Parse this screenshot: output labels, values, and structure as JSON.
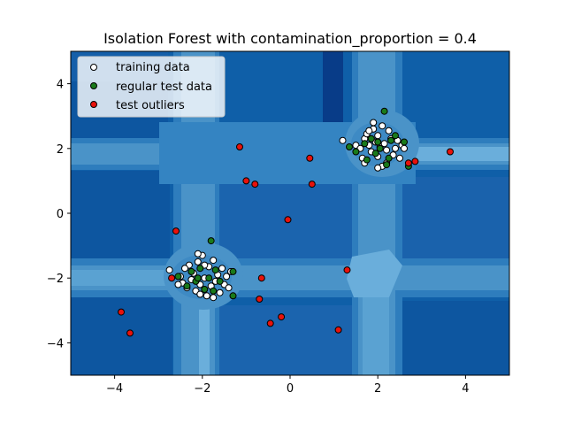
{
  "chart_data": {
    "type": "scatter",
    "title": "Isolation Forest with contamination_proportion = 0.4",
    "xlabel": "",
    "ylabel": "",
    "xlim": [
      -5,
      5
    ],
    "ylim": [
      -5,
      5
    ],
    "x_ticks": [
      -4,
      -2,
      0,
      2,
      4
    ],
    "y_ticks": [
      -4,
      -2,
      0,
      2,
      4
    ],
    "x_tick_labels": [
      "−4",
      "−2",
      "0",
      "2",
      "4"
    ],
    "y_tick_labels": [
      "−4",
      "−2",
      "0",
      "2",
      "4"
    ],
    "legend_position": "top-left",
    "grid": false,
    "background": "decision-function contour (blues)",
    "legend": [
      {
        "label": "training data",
        "color": "#ffffff"
      },
      {
        "label": "regular test data",
        "color": "#1a7a1a"
      },
      {
        "label": "test outliers",
        "color": "#e8120c"
      }
    ],
    "series": [
      {
        "name": "training data",
        "color": "#ffffff",
        "points": [
          [
            1.2,
            2.25
          ],
          [
            1.5,
            2.1
          ],
          [
            1.6,
            2.0
          ],
          [
            1.7,
            2.3
          ],
          [
            1.75,
            2.45
          ],
          [
            1.8,
            2.1
          ],
          [
            1.85,
            1.9
          ],
          [
            1.9,
            2.6
          ],
          [
            1.9,
            2.8
          ],
          [
            1.95,
            2.2
          ],
          [
            2.0,
            2.4
          ],
          [
            2.0,
            1.75
          ],
          [
            2.05,
            2.05
          ],
          [
            2.1,
            2.7
          ],
          [
            2.1,
            1.45
          ],
          [
            2.15,
            2.15
          ],
          [
            2.2,
            1.95
          ],
          [
            2.25,
            2.55
          ],
          [
            2.3,
            2.3
          ],
          [
            2.35,
            1.8
          ],
          [
            2.4,
            2.0
          ],
          [
            2.45,
            2.25
          ],
          [
            2.5,
            1.7
          ],
          [
            2.55,
            2.1
          ],
          [
            1.65,
            1.7
          ],
          [
            1.7,
            1.55
          ],
          [
            2.0,
            1.4
          ],
          [
            2.6,
            2.0
          ],
          [
            1.8,
            2.55
          ],
          [
            2.2,
            1.55
          ],
          [
            -2.75,
            -1.75
          ],
          [
            -2.5,
            -1.95
          ],
          [
            -2.45,
            -2.15
          ],
          [
            -2.35,
            -2.3
          ],
          [
            -2.3,
            -1.6
          ],
          [
            -2.25,
            -2.05
          ],
          [
            -2.2,
            -1.85
          ],
          [
            -2.15,
            -2.4
          ],
          [
            -2.1,
            -1.5
          ],
          [
            -2.05,
            -2.2
          ],
          [
            -2.0,
            -1.3
          ],
          [
            -1.95,
            -2.0
          ],
          [
            -1.9,
            -2.55
          ],
          [
            -1.85,
            -1.65
          ],
          [
            -1.8,
            -2.25
          ],
          [
            -1.75,
            -1.45
          ],
          [
            -1.7,
            -2.1
          ],
          [
            -1.65,
            -1.9
          ],
          [
            -1.6,
            -2.45
          ],
          [
            -1.55,
            -1.7
          ],
          [
            -1.5,
            -2.2
          ],
          [
            -1.45,
            -1.95
          ],
          [
            -1.4,
            -2.3
          ],
          [
            -1.35,
            -1.8
          ],
          [
            -2.1,
            -1.25
          ],
          [
            -2.4,
            -1.7
          ],
          [
            -2.55,
            -2.2
          ],
          [
            -1.75,
            -2.6
          ],
          [
            -1.95,
            -1.6
          ],
          [
            -2.05,
            -2.5
          ]
        ]
      },
      {
        "name": "regular test data",
        "color": "#1a7a1a",
        "points": [
          [
            2.15,
            3.15
          ],
          [
            1.35,
            2.05
          ],
          [
            1.5,
            1.9
          ],
          [
            1.7,
            2.15
          ],
          [
            1.85,
            2.3
          ],
          [
            1.95,
            1.85
          ],
          [
            2.05,
            2.0
          ],
          [
            2.25,
            1.7
          ],
          [
            2.3,
            2.25
          ],
          [
            2.4,
            2.4
          ],
          [
            2.6,
            2.2
          ],
          [
            2.7,
            1.45
          ],
          [
            2.2,
            1.5
          ],
          [
            1.75,
            1.65
          ],
          [
            2.0,
            2.2
          ],
          [
            -1.8,
            -0.85
          ],
          [
            -2.55,
            -1.95
          ],
          [
            -2.35,
            -2.25
          ],
          [
            -2.25,
            -1.8
          ],
          [
            -2.15,
            -2.1
          ],
          [
            -2.05,
            -1.7
          ],
          [
            -1.95,
            -2.35
          ],
          [
            -1.85,
            -2.0
          ],
          [
            -1.7,
            -1.75
          ],
          [
            -1.6,
            -2.1
          ],
          [
            -1.3,
            -2.55
          ],
          [
            -1.3,
            -1.8
          ],
          [
            -2.1,
            -2.0
          ],
          [
            -1.75,
            -2.4
          ]
        ]
      },
      {
        "name": "test outliers",
        "color": "#e8120c",
        "points": [
          [
            -1.15,
            2.05
          ],
          [
            -1.0,
            1.0
          ],
          [
            -0.8,
            0.9
          ],
          [
            0.45,
            1.7
          ],
          [
            0.5,
            0.9
          ],
          [
            -0.05,
            -0.2
          ],
          [
            -2.6,
            -0.55
          ],
          [
            -2.7,
            -2.0
          ],
          [
            -0.65,
            -2.0
          ],
          [
            -0.7,
            -2.65
          ],
          [
            -0.45,
            -3.4
          ],
          [
            -0.2,
            -3.2
          ],
          [
            1.1,
            -3.6
          ],
          [
            1.3,
            -1.75
          ],
          [
            -3.85,
            -3.05
          ],
          [
            -3.65,
            -3.7
          ],
          [
            2.7,
            1.55
          ],
          [
            2.85,
            1.6
          ],
          [
            3.65,
            1.9
          ]
        ]
      }
    ]
  }
}
